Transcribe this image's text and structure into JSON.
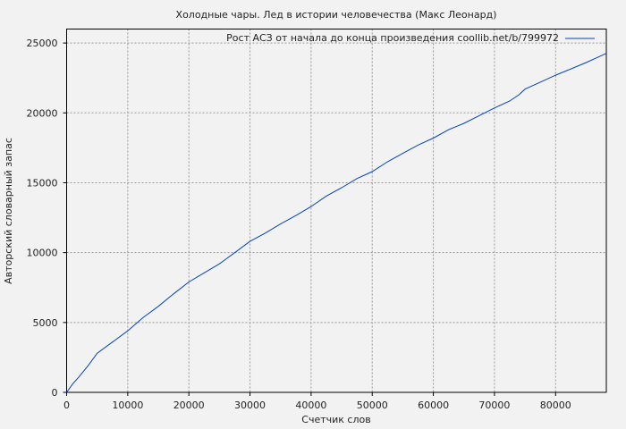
{
  "chart_data": {
    "type": "line",
    "title": "Холодные чары. Лед в истории человечества (Макс Леонард)",
    "xlabel": "Счетчик слов",
    "ylabel": "Авторский словарный запас",
    "xlim": [
      0,
      88300
    ],
    "ylim": [
      0,
      26000
    ],
    "xticks": [
      0,
      10000,
      20000,
      30000,
      40000,
      50000,
      60000,
      70000,
      80000
    ],
    "yticks": [
      0,
      5000,
      10000,
      15000,
      20000,
      25000
    ],
    "grid": true,
    "legend_position": "top-right",
    "series": [
      {
        "name": "Рост АСЗ от начала до конца произведения coollib.net/b/799972",
        "color": "#0044bb",
        "x": [
          0,
          1000,
          2000,
          3500,
          5000,
          7500,
          10000,
          12500,
          15000,
          17500,
          20000,
          22500,
          25000,
          27500,
          30000,
          32500,
          35000,
          37500,
          40000,
          42500,
          45000,
          47500,
          50000,
          52500,
          55000,
          57500,
          60000,
          62500,
          65000,
          67500,
          70000,
          72500,
          74000,
          75000,
          77500,
          80000,
          82500,
          85000,
          87000,
          88300
        ],
        "y": [
          0,
          600,
          1100,
          1900,
          2800,
          3600,
          4400,
          5350,
          6150,
          7050,
          7900,
          8550,
          9200,
          10000,
          10800,
          11400,
          12050,
          12650,
          13300,
          14050,
          14650,
          15300,
          15800,
          16500,
          17100,
          17700,
          18200,
          18800,
          19250,
          19800,
          20350,
          20850,
          21300,
          21700,
          22200,
          22700,
          23150,
          23600,
          24000,
          24260
        ]
      }
    ]
  }
}
